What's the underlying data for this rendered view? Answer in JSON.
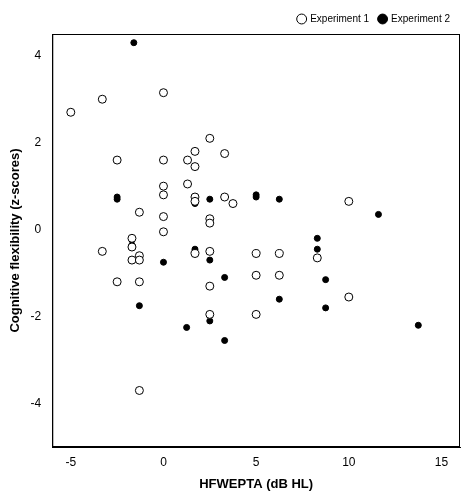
{
  "chart_data": {
    "type": "scatter",
    "x_label": "HFWEPTA (dB HL)",
    "y_label": "Cognitive flexibility (z-scores)",
    "xlim": [
      -6,
      16
    ],
    "xticks": [
      -5,
      0,
      5,
      10,
      15
    ],
    "ylim": [
      -5,
      4.5
    ],
    "yticks": [
      -4,
      -2,
      0,
      2,
      4
    ],
    "grid": false,
    "legend": "top-right",
    "series": [
      {
        "name": "Experiment 1",
        "color": "#000000",
        "marker": "circle_open",
        "x": [
          -5,
          -3.3,
          -3.3,
          -2.5,
          -2.5,
          -1.7,
          -1.7,
          -1.7,
          -1.3,
          -1.3,
          -1.3,
          -1.3,
          -1.3,
          0,
          0,
          0,
          0,
          0,
          0,
          1.3,
          1.3,
          1.7,
          1.7,
          1.7,
          1.7,
          1.7,
          2.5,
          2.5,
          2.5,
          2.5,
          2.5,
          2.5,
          3.3,
          3.3,
          3.75,
          5,
          5,
          5,
          6.25,
          6.25,
          8.3,
          10,
          10
        ],
        "values": [
          2.7,
          3.0,
          -0.5,
          1.6,
          -1.2,
          -0.2,
          -0.4,
          -0.7,
          0.4,
          -0.6,
          -0.7,
          -1.2,
          -3.7,
          3.15,
          1.6,
          1.0,
          0.8,
          0.3,
          -0.05,
          1.6,
          1.05,
          1.8,
          1.45,
          0.75,
          0.65,
          -0.55,
          2.1,
          0.25,
          0.15,
          -0.5,
          -1.3,
          -1.95,
          1.75,
          0.75,
          0.6,
          -0.55,
          -1.05,
          -1.95,
          -0.55,
          -1.05,
          -0.65,
          0.65,
          -1.55
        ]
      },
      {
        "name": "Experiment 2",
        "color": "#000000",
        "marker": "circle",
        "x": [
          -1.6,
          -2.5,
          -2.5,
          -1.7,
          -1.7,
          -1.3,
          0,
          1.25,
          1.7,
          1.7,
          1.7,
          1.7,
          2.5,
          2.5,
          2.5,
          3.3,
          3.3,
          5,
          5,
          5,
          6.25,
          6.25,
          8.3,
          8.3,
          8.75,
          8.75,
          11.6,
          13.75
        ],
        "values": [
          4.3,
          0.75,
          0.7,
          -0.35,
          -0.4,
          -1.75,
          -0.75,
          -2.25,
          0.65,
          0.6,
          -0.45,
          -0.5,
          0.7,
          -0.7,
          -2.1,
          -1.1,
          -2.55,
          0.8,
          0.75,
          -1.05,
          0.7,
          -1.6,
          -0.2,
          -0.45,
          -1.15,
          -1.8,
          0.35,
          -2.2
        ]
      }
    ]
  }
}
